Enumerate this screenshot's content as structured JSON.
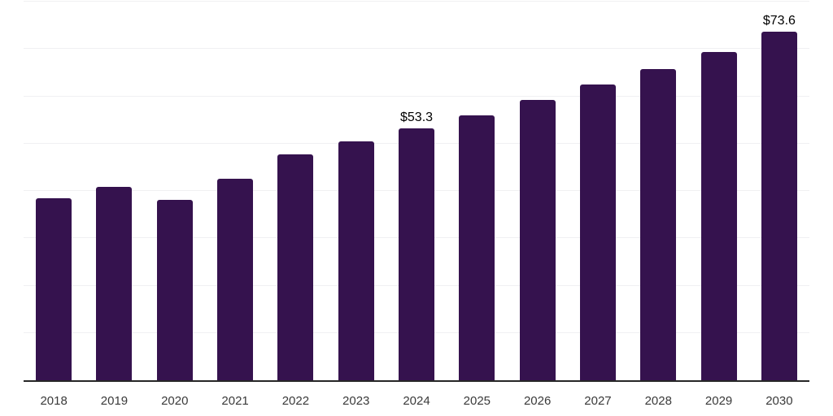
{
  "chart_data": {
    "type": "bar",
    "title": "",
    "xlabel": "",
    "ylabel": "",
    "categories": [
      "2018",
      "2019",
      "2020",
      "2021",
      "2022",
      "2023",
      "2024",
      "2025",
      "2026",
      "2027",
      "2028",
      "2029",
      "2030"
    ],
    "values": [
      38.4,
      40.8,
      38.1,
      42.5,
      47.8,
      50.4,
      53.3,
      56.0,
      59.2,
      62.5,
      65.8,
      69.4,
      73.6
    ],
    "data_labels": [
      null,
      null,
      null,
      null,
      null,
      null,
      "$53.3",
      null,
      null,
      null,
      null,
      null,
      "$73.6"
    ],
    "ylim": [
      0,
      80
    ],
    "grid_step": 10,
    "grid": "horizontal",
    "legend_position": "none",
    "bar_color": "#35124e",
    "axis_color": "#262626",
    "gridline_color": "#f0f0f2",
    "tick_label_color": "#3a3a3a",
    "data_label_color": "#000000",
    "background_color": "#ffffff"
  }
}
